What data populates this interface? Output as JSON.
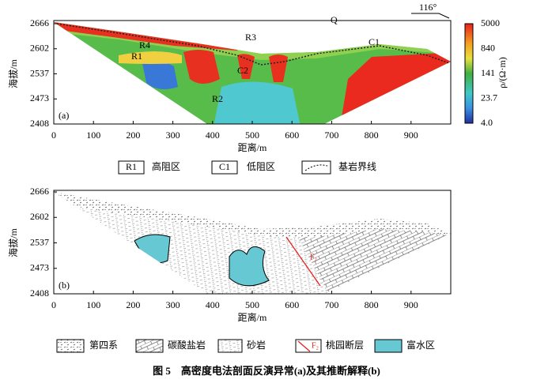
{
  "orientation": "116°",
  "panels": [
    {
      "label": "(a)",
      "y_label": "海拔/m",
      "x_label": "距离/m",
      "yticks": [
        "2666",
        "2602",
        "2537",
        "2473",
        "2408"
      ],
      "xticks": [
        "0",
        "100",
        "200",
        "300",
        "400",
        "500",
        "600",
        "700",
        "800",
        "900"
      ],
      "annotations": [
        "R1",
        "R2",
        "R3",
        "R4",
        "C1",
        "C2",
        "Q"
      ],
      "colorbar": {
        "title": "ρ/(Ω·m)",
        "ticks": [
          "5000",
          "840",
          "141",
          "23.7",
          "4.0"
        ]
      }
    },
    {
      "label": "(b)",
      "y_label": "海拔/m",
      "x_label": "距离/m",
      "yticks": [
        "2666",
        "2602",
        "2537",
        "2473",
        "2408"
      ],
      "xticks": [
        "0",
        "100",
        "200",
        "300",
        "400",
        "500",
        "600",
        "700",
        "800",
        "900"
      ],
      "annotations": [
        "F₂"
      ]
    }
  ],
  "legend_a": [
    {
      "symbol": "R1",
      "text": "高阻区"
    },
    {
      "symbol": "C1",
      "text": "低阻区"
    },
    {
      "text": "基岩界线"
    }
  ],
  "legend_b": [
    {
      "text": "第四系"
    },
    {
      "text": "碳酸盐岩"
    },
    {
      "text": "砂岩"
    },
    {
      "symbol": "F₂",
      "text": "桃园断层"
    },
    {
      "text": "富水区"
    }
  ],
  "caption": "图 5　高密度电法剖面反演异常(a)及其推断解释(b)"
}
